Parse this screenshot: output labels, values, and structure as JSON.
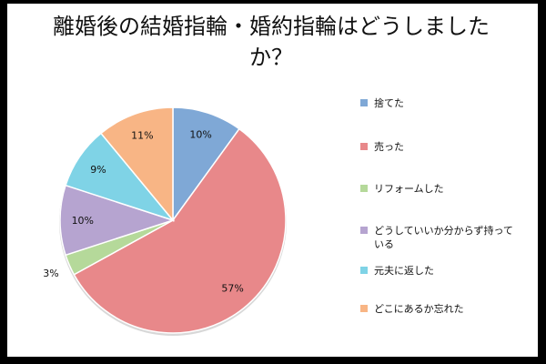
{
  "chart_data": {
    "type": "pie",
    "title": "離婚後の結婚指輪・婚約指輪はどうしましたか？",
    "categories": [
      "捨てた",
      "売った",
      "リフォームした",
      "どうしていいか分からず持っている",
      "元夫に返した",
      "どこにあるか忘れた"
    ],
    "values": [
      10,
      57,
      3,
      10,
      9,
      11
    ],
    "data_labels": [
      "10%",
      "57%",
      "3%",
      "10%",
      "9%",
      "11%"
    ],
    "colors": [
      "#7fa8d6",
      "#e8888a",
      "#b5d99a",
      "#b6a4d0",
      "#7fd3e6",
      "#f8b585"
    ],
    "legend_position": "right",
    "start_angle_deg": 0,
    "direction": "clockwise"
  }
}
